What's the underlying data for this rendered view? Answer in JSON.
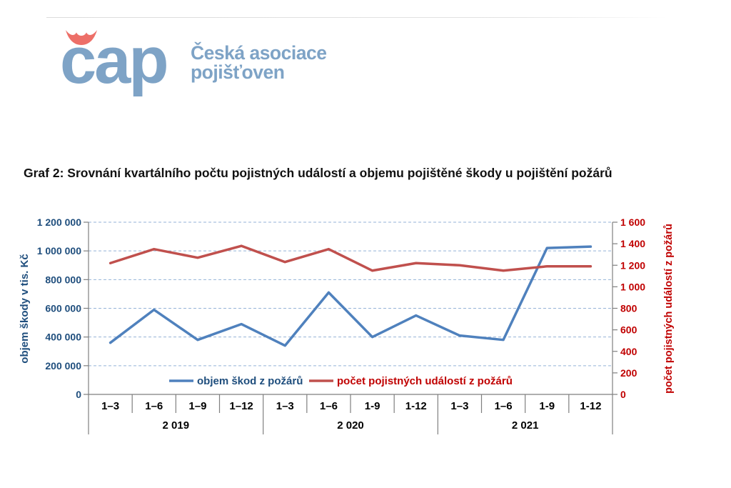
{
  "header": {
    "logo": {
      "wordmark": "cap",
      "caron_color": "#ed6f68",
      "text_color": "#7ea3c6",
      "org_line1": "Česká asociace",
      "org_line2": "pojišťoven"
    }
  },
  "title": "Graf 2: Srovnání kvartálního počtu pojistných událostí a objemu pojištěné škody u pojištění požárů",
  "chart_data": {
    "type": "line",
    "x_groups": [
      {
        "year": "2 019",
        "quarters": [
          "1–3",
          "1–6",
          "1–9",
          "1–12"
        ]
      },
      {
        "year": "2 020",
        "quarters": [
          "1–3",
          "1–6",
          "1-9",
          "1-12"
        ]
      },
      {
        "year": "2 021",
        "quarters": [
          "1–3",
          "1–6",
          "1-9",
          "1-12"
        ]
      }
    ],
    "series": [
      {
        "name": "objem škod z požárů",
        "axis": "left",
        "color": "#4f81bd",
        "values": [
          360000,
          590000,
          380000,
          490000,
          340000,
          710000,
          400000,
          550000,
          410000,
          380000,
          1020000,
          1030000
        ]
      },
      {
        "name": "počet pojistných událostí z požárů",
        "axis": "right",
        "color": "#c0504d",
        "values": [
          1220,
          1350,
          1270,
          1380,
          1230,
          1350,
          1150,
          1220,
          1200,
          1150,
          1190,
          1190
        ]
      }
    ],
    "left_axis": {
      "label": "objem škody v tis. Kč",
      "min": 0,
      "max": 1200000,
      "step": 200000,
      "color": "#1f4e7d"
    },
    "right_axis": {
      "label": "počet pojistných událostí z požárů",
      "min": 0,
      "max": 1600,
      "step": 200,
      "color": "#c00000"
    },
    "grid": "horizontal dashed",
    "gridline_color": "#95b3d7",
    "axis_line_color": "#7f7f7f",
    "legend_position": "inside bottom",
    "legend": [
      "objem škod z požárů",
      "počet pojistných událostí z požárů"
    ]
  }
}
